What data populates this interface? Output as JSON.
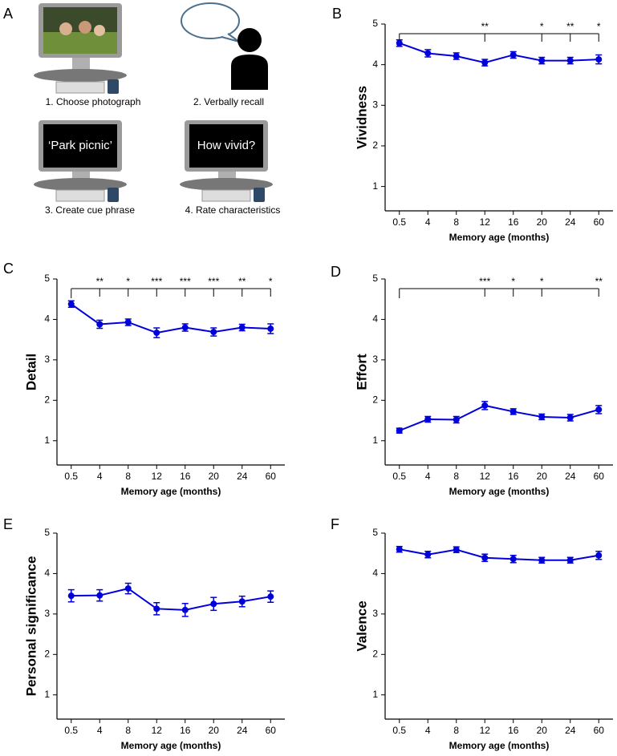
{
  "diagram": {
    "label": "A",
    "steps": [
      "1. Choose photograph",
      "2. Verbally recall",
      "3. Create cue phrase",
      "4. Rate characteristics"
    ],
    "screen_texts": [
      "‘Park picnic’",
      "How vivid?"
    ]
  },
  "chart_data": [
    {
      "type": "line",
      "panel_label": "B",
      "ylabel": "Vividness",
      "xlabel": "Memory age (months)",
      "categories": [
        "0.5",
        "4",
        "8",
        "12",
        "16",
        "20",
        "24",
        "60"
      ],
      "series": [
        {
          "color": "#0000dd",
          "values": [
            4.53,
            4.28,
            4.21,
            4.05,
            4.24,
            4.1,
            4.1,
            4.13
          ],
          "errors": [
            0.08,
            0.09,
            0.08,
            0.08,
            0.08,
            0.08,
            0.08,
            0.11
          ]
        }
      ],
      "ylim": [
        0.4,
        5
      ],
      "yticks": [
        1,
        2,
        3,
        4,
        5
      ],
      "significance": [
        {
          "category": "12",
          "label": "**"
        },
        {
          "category": "20",
          "label": "*"
        },
        {
          "category": "24",
          "label": "**"
        },
        {
          "category": "60",
          "label": "*"
        }
      ]
    },
    {
      "type": "line",
      "panel_label": "C",
      "ylabel": "Detail",
      "xlabel": "Memory age (months)",
      "categories": [
        "0.5",
        "4",
        "8",
        "12",
        "16",
        "20",
        "24",
        "60"
      ],
      "series": [
        {
          "color": "#0000dd",
          "values": [
            4.38,
            3.88,
            3.93,
            3.67,
            3.8,
            3.69,
            3.8,
            3.77
          ],
          "errors": [
            0.08,
            0.1,
            0.08,
            0.12,
            0.09,
            0.1,
            0.08,
            0.12
          ]
        }
      ],
      "ylim": [
        0.4,
        5
      ],
      "yticks": [
        1,
        2,
        3,
        4,
        5
      ],
      "significance": [
        {
          "category": "4",
          "label": "**"
        },
        {
          "category": "8",
          "label": "*"
        },
        {
          "category": "12",
          "label": "***"
        },
        {
          "category": "16",
          "label": "***"
        },
        {
          "category": "20",
          "label": "***"
        },
        {
          "category": "24",
          "label": "**"
        },
        {
          "category": "60",
          "label": "*"
        }
      ]
    },
    {
      "type": "line",
      "panel_label": "D",
      "ylabel": "Effort",
      "xlabel": "Memory age (months)",
      "categories": [
        "0.5",
        "4",
        "8",
        "12",
        "16",
        "20",
        "24",
        "60"
      ],
      "series": [
        {
          "color": "#0000dd",
          "values": [
            1.25,
            1.53,
            1.52,
            1.87,
            1.72,
            1.59,
            1.57,
            1.77
          ],
          "errors": [
            0.06,
            0.07,
            0.08,
            0.1,
            0.07,
            0.07,
            0.08,
            0.1
          ]
        }
      ],
      "ylim": [
        0.4,
        5
      ],
      "yticks": [
        1,
        2,
        3,
        4,
        5
      ],
      "significance": [
        {
          "category": "12",
          "label": "***"
        },
        {
          "category": "16",
          "label": "*"
        },
        {
          "category": "20",
          "label": "*"
        },
        {
          "category": "60",
          "label": "**"
        }
      ]
    },
    {
      "type": "line",
      "panel_label": "E",
      "ylabel": "Personal significance",
      "xlabel": "Memory age (months)",
      "categories": [
        "0.5",
        "4",
        "8",
        "12",
        "16",
        "20",
        "24",
        "60"
      ],
      "series": [
        {
          "color": "#0000dd",
          "values": [
            3.45,
            3.46,
            3.63,
            3.13,
            3.1,
            3.25,
            3.31,
            3.43
          ],
          "errors": [
            0.15,
            0.14,
            0.13,
            0.15,
            0.16,
            0.16,
            0.13,
            0.14
          ]
        }
      ],
      "ylim": [
        0.4,
        5
      ],
      "yticks": [
        1,
        2,
        3,
        4,
        5
      ],
      "significance": []
    },
    {
      "type": "line",
      "panel_label": "F",
      "ylabel": "Valence",
      "xlabel": "Memory age (months)",
      "categories": [
        "0.5",
        "4",
        "8",
        "12",
        "16",
        "20",
        "24",
        "60"
      ],
      "series": [
        {
          "color": "#0000dd",
          "values": [
            4.6,
            4.47,
            4.59,
            4.39,
            4.36,
            4.33,
            4.33,
            4.45
          ],
          "errors": [
            0.07,
            0.08,
            0.07,
            0.09,
            0.09,
            0.07,
            0.07,
            0.1
          ]
        }
      ],
      "ylim": [
        0.4,
        5
      ],
      "yticks": [
        1,
        2,
        3,
        4,
        5
      ],
      "significance": []
    }
  ]
}
